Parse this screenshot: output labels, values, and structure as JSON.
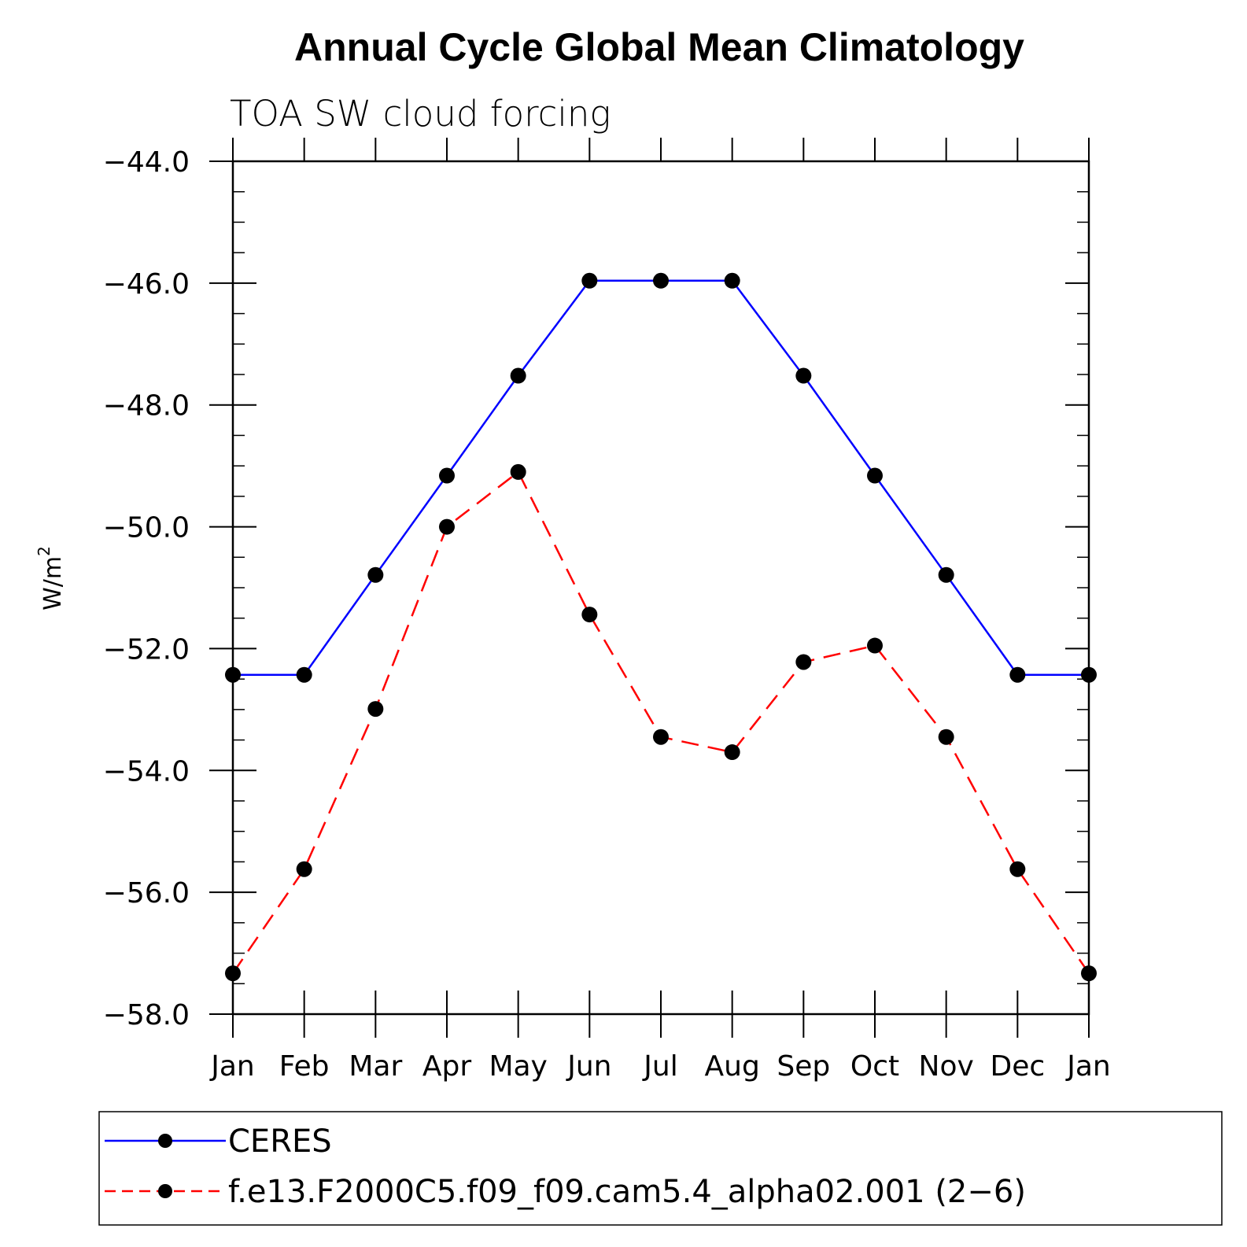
{
  "chart_data": {
    "type": "line",
    "title": "Annual Cycle Global Mean Climatology",
    "subtitle": "TOA SW cloud forcing",
    "ylabel": "W/m",
    "ylabel_superscript": "2",
    "xlabel": "",
    "categories": [
      "Jan",
      "Feb",
      "Mar",
      "Apr",
      "May",
      "Jun",
      "Jul",
      "Aug",
      "Sep",
      "Oct",
      "Nov",
      "Dec",
      "Jan"
    ],
    "ylim": [
      -58.0,
      -44.0
    ],
    "yticks": [
      -44.0,
      -46.0,
      -48.0,
      -50.0,
      -52.0,
      -54.0,
      -56.0,
      -58.0
    ],
    "ytick_labels": [
      "−44.0",
      "−46.0",
      "−48.0",
      "−50.0",
      "−52.0",
      "−54.0",
      "−56.0",
      "−58.0"
    ],
    "grid": false,
    "legend_position": "bottom",
    "series": [
      {
        "name": "CERES",
        "color": "#0000ff",
        "style": "solid",
        "values": [
          -52.43,
          -52.43,
          -50.79,
          -49.16,
          -47.52,
          -45.96,
          -45.96,
          -45.96,
          -47.52,
          -49.16,
          -50.79,
          -52.43,
          -52.43
        ]
      },
      {
        "name": "f.e13.F2000C5.f09_f09.cam5.4_alpha02.001 (2−6)",
        "color": "#ff0000",
        "style": "dashed",
        "values": [
          -57.33,
          -55.62,
          -52.99,
          -50.0,
          -49.1,
          -51.44,
          -53.45,
          -53.7,
          -52.22,
          -51.95,
          -53.45,
          -55.62,
          -57.33
        ]
      }
    ]
  }
}
